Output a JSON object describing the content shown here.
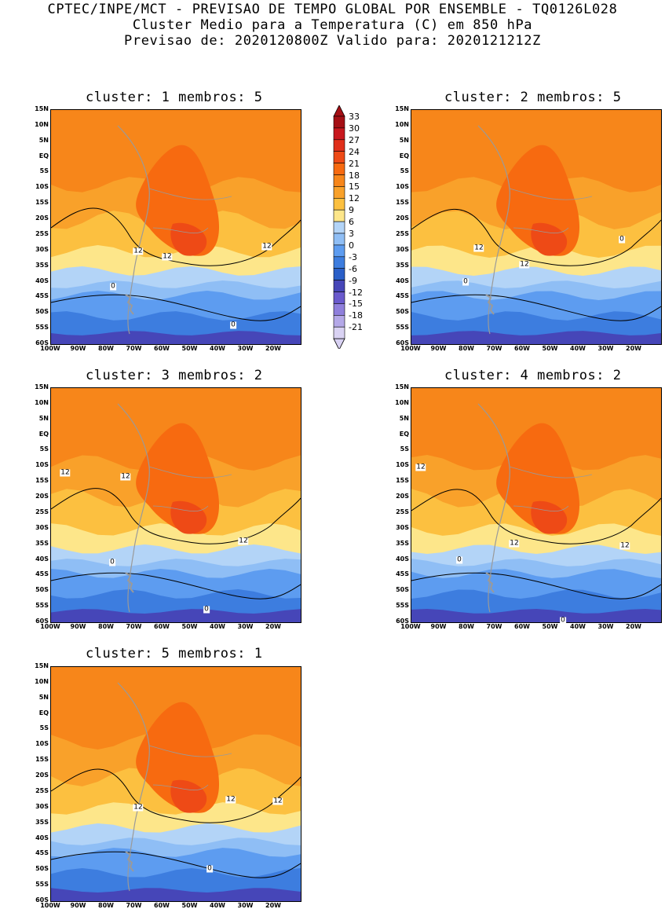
{
  "header": {
    "line1": "CPTEC/INPE/MCT - PREVISAO DE TEMPO GLOBAL POR ENSEMBLE - TQ0126L028",
    "line2": "Cluster Medio para a Temperatura (C) em 850 hPa",
    "line3": "Previsao de: 2020120800Z   Valido para: 2020121212Z"
  },
  "axes": {
    "lat_labels": [
      "15N",
      "10N",
      "5N",
      "EQ",
      "5S",
      "10S",
      "15S",
      "20S",
      "25S",
      "30S",
      "35S",
      "40S",
      "45S",
      "50S",
      "55S",
      "60S"
    ],
    "lon_labels": [
      "100W",
      "90W",
      "80W",
      "70W",
      "60W",
      "50W",
      "40W",
      "30W",
      "20W"
    ]
  },
  "colorbar": {
    "labels": [
      "33",
      "30",
      "27",
      "24",
      "21",
      "18",
      "15",
      "12",
      "9",
      "6",
      "3",
      "0",
      "-3",
      "-6",
      "-9",
      "-12",
      "-15",
      "-18",
      "-21"
    ],
    "colors": [
      "#a50f15",
      "#c8181e",
      "#e02f1a",
      "#ee4a16",
      "#f76a10",
      "#f7861a",
      "#f9a12a",
      "#fcc040",
      "#fde68a",
      "#b3d4f7",
      "#8fbef5",
      "#5d9cf0",
      "#3d7ddf",
      "#2a5fc8",
      "#4646b8",
      "#6a5acd",
      "#8f7fdc",
      "#b4a8e8",
      "#d9d2f3"
    ]
  },
  "panels": [
    {
      "title": "cluster: 1   membros: 5",
      "contour_labels": [
        "12",
        "12",
        "12",
        "0",
        "0"
      ]
    },
    {
      "title": "cluster: 2   membros: 5",
      "contour_labels": [
        "12",
        "12",
        "0",
        "0"
      ]
    },
    {
      "title": "cluster: 3   membros: 2",
      "contour_labels": [
        "12",
        "12",
        "12",
        "0",
        "0"
      ]
    },
    {
      "title": "cluster: 4   membros: 2",
      "contour_labels": [
        "12",
        "12",
        "12",
        "0",
        "0"
      ]
    },
    {
      "title": "cluster: 5   membros: 1",
      "contour_labels": [
        "12",
        "12",
        "12",
        "0"
      ]
    }
  ]
}
